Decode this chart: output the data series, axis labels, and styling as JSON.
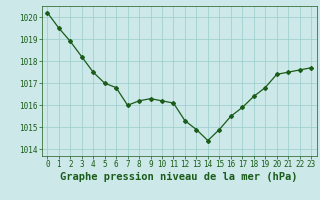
{
  "x": [
    0,
    1,
    2,
    3,
    4,
    5,
    6,
    7,
    8,
    9,
    10,
    11,
    12,
    13,
    14,
    15,
    16,
    17,
    18,
    19,
    20,
    21,
    22,
    23
  ],
  "y": [
    1020.2,
    1019.5,
    1018.9,
    1018.2,
    1017.5,
    1017.0,
    1016.8,
    1016.0,
    1016.2,
    1016.3,
    1016.2,
    1016.1,
    1015.3,
    1014.9,
    1014.4,
    1014.9,
    1015.5,
    1015.9,
    1016.4,
    1016.8,
    1017.4,
    1017.5,
    1017.6,
    1017.7
  ],
  "ylim": [
    1013.7,
    1020.5
  ],
  "yticks": [
    1014,
    1015,
    1016,
    1017,
    1018,
    1019,
    1020
  ],
  "xticks": [
    0,
    1,
    2,
    3,
    4,
    5,
    6,
    7,
    8,
    9,
    10,
    11,
    12,
    13,
    14,
    15,
    16,
    17,
    18,
    19,
    20,
    21,
    22,
    23
  ],
  "line_color": "#1a5c1a",
  "marker": "D",
  "marker_size": 2.0,
  "bg_color": "#cce8e8",
  "grid_color": "#99cccc",
  "xlabel": "Graphe pression niveau de la mer (hPa)",
  "xlabel_color": "#1a5c1a",
  "tick_color": "#1a5c1a",
  "tick_fontsize": 5.5,
  "xlabel_fontsize": 7.5,
  "linewidth": 0.9
}
